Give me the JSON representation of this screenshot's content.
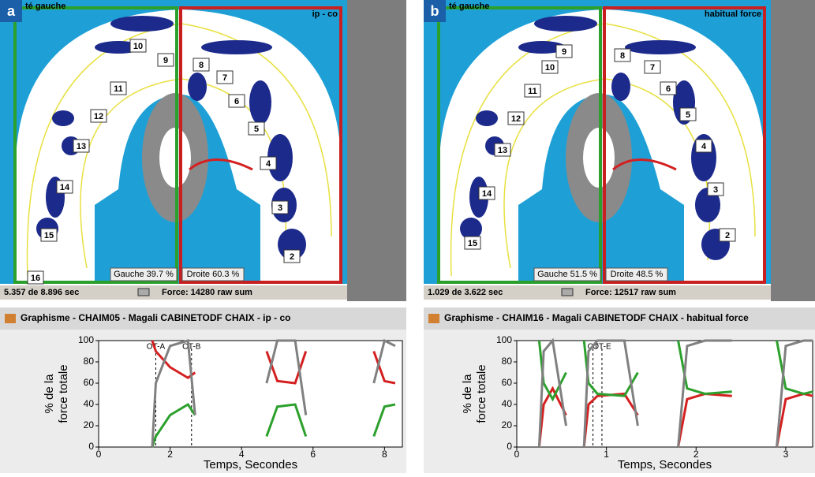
{
  "panels": [
    {
      "label": "a",
      "header_left": "té gauche",
      "header_right": "ip - co",
      "teeth": [
        "10",
        "9",
        "11",
        "12",
        "13",
        "14",
        "15",
        "16",
        "8",
        "7",
        "6",
        "5",
        "4",
        "3",
        "2"
      ],
      "left_share": "Gauche 39.7 %",
      "right_share": "Droite 60.3 %",
      "time": "5.357 de 8.896 sec",
      "force": "Force: 14280 raw sum",
      "window_title": "Graphisme - CHAIM05 - Magali CABINETODF CHAIX - ip - co",
      "graph": {
        "type": "line",
        "y_label": [
          "% de la",
          "force totale"
        ],
        "x_label": "Temps, Secondes",
        "xlim": [
          0,
          8.5
        ],
        "xticks": [
          0,
          2,
          4,
          6,
          8
        ],
        "ylim": [
          0,
          100
        ],
        "yticks": [
          0,
          20,
          40,
          60,
          80,
          100
        ],
        "markers": [
          {
            "label": "OT-A",
            "x": 1.6
          },
          {
            "label": "OT-B",
            "x": 2.6
          }
        ],
        "x": [
          1.5,
          1.6,
          2.0,
          2.5,
          2.7,
          2.8,
          4.5,
          4.7,
          5.0,
          5.5,
          5.8,
          5.9,
          7.5,
          7.7,
          8.0,
          8.3
        ],
        "series": [
          {
            "color": "#d42020",
            "values": [
              100,
              90,
              75,
              65,
              70,
              null,
              null,
              90,
              62,
              60,
              90,
              null,
              null,
              90,
              62,
              60
            ]
          },
          {
            "color": "#2ca02c",
            "values": [
              0,
              10,
              30,
              40,
              30,
              null,
              null,
              10,
              38,
              40,
              10,
              null,
              null,
              10,
              38,
              40
            ]
          },
          {
            "color": "#808080",
            "values": [
              0,
              60,
              95,
              100,
              30,
              null,
              null,
              60,
              100,
              100,
              30,
              null,
              null,
              60,
              100,
              95
            ]
          }
        ]
      }
    },
    {
      "label": "b",
      "header_left": "té gauche",
      "header_right": "habitual force",
      "teeth": [
        "9",
        "10",
        "11",
        "12",
        "13",
        "14",
        "15",
        "8",
        "7",
        "6",
        "5",
        "4",
        "3",
        "2"
      ],
      "left_share": "Gauche 51.5 %",
      "right_share": "Droite 48.5 %",
      "time": "1.029 de 3.622 sec",
      "force": "Force: 12517 raw sum",
      "window_title": "Graphisme - CHAIM16 - Magali CABINETODF CHAIX - habitual force",
      "graph": {
        "type": "line",
        "y_label": [
          "% de la",
          "force totale"
        ],
        "x_label": "Temps, Secondes",
        "xlim": [
          0,
          3.3
        ],
        "xticks": [
          0,
          1,
          2,
          3
        ],
        "ylim": [
          0,
          100
        ],
        "yticks": [
          0,
          20,
          40,
          60,
          80,
          100
        ],
        "markers": [
          {
            "label": "OT",
            "x": 0.85
          },
          {
            "label": "OT-E",
            "x": 0.95
          }
        ],
        "x": [
          0.25,
          0.3,
          0.4,
          0.55,
          0.6,
          0.75,
          0.8,
          0.9,
          1.2,
          1.35,
          1.4,
          1.8,
          1.9,
          2.1,
          2.4,
          2.5,
          2.9,
          3.0,
          3.2,
          3.3
        ],
        "series": [
          {
            "color": "#d42020",
            "values": [
              0,
              40,
              55,
              30,
              null,
              0,
              40,
              48,
              50,
              30,
              null,
              0,
              45,
              50,
              48,
              null,
              0,
              45,
              50,
              48
            ]
          },
          {
            "color": "#2ca02c",
            "values": [
              100,
              60,
              45,
              70,
              null,
              100,
              60,
              50,
              48,
              70,
              null,
              100,
              55,
              50,
              52,
              null,
              100,
              55,
              50,
              52
            ]
          },
          {
            "color": "#808080",
            "values": [
              0,
              90,
              100,
              20,
              null,
              0,
              90,
              100,
              100,
              20,
              null,
              0,
              95,
              100,
              100,
              null,
              0,
              95,
              100,
              100
            ]
          }
        ]
      }
    }
  ]
}
